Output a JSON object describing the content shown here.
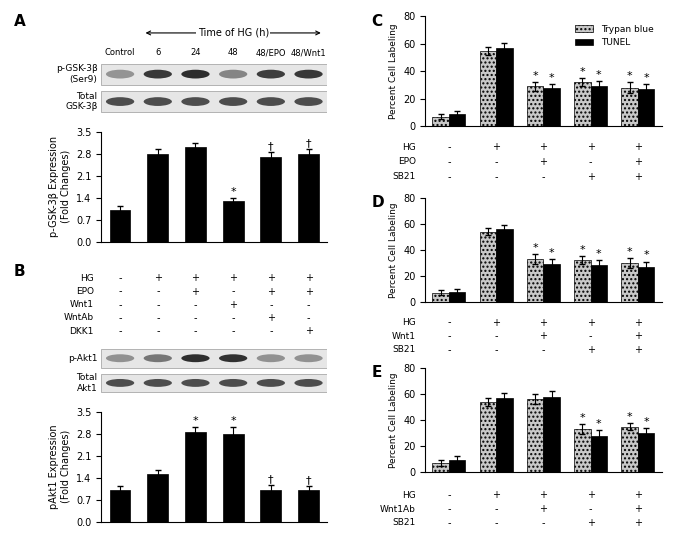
{
  "chart_data": [
    {
      "title": "A",
      "type": "bar",
      "categories": [
        "Control",
        "6",
        "24",
        "48",
        "48/EPO",
        "48/Wnt1"
      ],
      "header": "Time of HG (h)",
      "blot_rows": [
        "p-GSK-3β\n(Ser9)",
        "Total\nGSK-3β"
      ],
      "ylabel": "p-GSK-3β Expression\n(Fold Changes)",
      "values": [
        1.0,
        2.8,
        3.0,
        1.3,
        2.7,
        2.8
      ],
      "errors": [
        0.12,
        0.15,
        0.15,
        0.08,
        0.15,
        0.15
      ],
      "annotations": [
        null,
        null,
        null,
        "*",
        "†",
        "†"
      ],
      "color": "#000000",
      "ylim": [
        0,
        3.5
      ],
      "yticks": [
        {
          "value": 0,
          "label": "0.0"
        },
        0.7,
        1.4,
        2.1,
        2.8,
        3.5
      ],
      "tick_labels": "y"
    },
    {
      "title": "B",
      "type": "bar",
      "conditions": [
        {
          "name": "HG",
          "values": [
            "-",
            "+",
            "+",
            "+",
            "+",
            "+"
          ]
        },
        {
          "name": "EPO",
          "values": [
            "-",
            "-",
            "+",
            "-",
            "+",
            "+"
          ]
        },
        {
          "name": "Wnt1",
          "values": [
            "-",
            "-",
            "-",
            "+",
            "-",
            "-"
          ]
        },
        {
          "name": "WntAb",
          "values": [
            "-",
            "-",
            "-",
            "-",
            "+",
            "-"
          ]
        },
        {
          "name": "DKK1",
          "values": [
            "-",
            "-",
            "-",
            "-",
            "-",
            "+"
          ]
        }
      ],
      "blot_rows": [
        "p-Akt1",
        "Total\nAkt1"
      ],
      "ylabel": "pAkt1 Expression\n(Fold Changes)",
      "values": [
        1.0,
        1.5,
        2.85,
        2.8,
        1.0,
        1.0
      ],
      "errors": [
        0.12,
        0.15,
        0.15,
        0.2,
        0.15,
        0.12
      ],
      "annotations": [
        null,
        null,
        "*",
        "*",
        "†",
        "†"
      ],
      "color": "#000000",
      "ylim": [
        0,
        3.5
      ],
      "yticks": [
        {
          "value": 0,
          "label": "0.0"
        },
        0.7,
        1.4,
        2.1,
        2.8,
        3.5
      ],
      "tick_labels": "y"
    },
    {
      "title": "C",
      "type": "bar",
      "conditions": [
        {
          "name": "HG",
          "values": [
            "-",
            "+",
            "+",
            "+",
            "+"
          ]
        },
        {
          "name": "EPO",
          "values": [
            "-",
            "-",
            "+",
            "-",
            "+"
          ]
        },
        {
          "name": "SB21",
          "values": [
            "-",
            "-",
            "-",
            "+",
            "+"
          ]
        }
      ],
      "ylabel": "Percent Cell Labeling",
      "series": [
        {
          "name": "Trypan blue",
          "color": "#c8c8c8",
          "values": [
            7,
            55,
            29,
            32,
            28
          ],
          "errors": [
            2,
            3,
            3,
            3,
            4
          ],
          "annotations": [
            null,
            null,
            "*",
            "*",
            "*"
          ]
        },
        {
          "name": "TUNEL",
          "color": "#000000",
          "values": [
            9,
            57,
            28,
            29,
            27
          ],
          "errors": [
            2,
            4,
            3,
            4,
            4
          ],
          "annotations": [
            null,
            null,
            "*",
            "*",
            "*"
          ]
        }
      ],
      "legend": "upper right",
      "ylim": [
        0,
        80
      ],
      "yticks": [
        0,
        20,
        40,
        60,
        80
      ],
      "tick_labels": "y"
    },
    {
      "title": "D",
      "type": "bar",
      "conditions": [
        {
          "name": "HG",
          "values": [
            "-",
            "+",
            "+",
            "+",
            "+"
          ]
        },
        {
          "name": "Wnt1",
          "values": [
            "-",
            "-",
            "+",
            "-",
            "+"
          ]
        },
        {
          "name": "SB21",
          "values": [
            "-",
            "-",
            "-",
            "+",
            "+"
          ]
        }
      ],
      "ylabel": "Percent Cell Labeling",
      "series": [
        {
          "color": "#c8c8c8",
          "values": [
            7,
            54,
            33,
            32,
            30
          ],
          "errors": [
            2,
            3,
            4,
            3,
            4
          ],
          "annotations": [
            null,
            null,
            "*",
            "*",
            "*"
          ]
        },
        {
          "color": "#000000",
          "values": [
            8,
            56,
            29,
            28,
            27
          ],
          "errors": [
            2,
            3,
            4,
            4,
            4
          ],
          "annotations": [
            null,
            null,
            "*",
            "*",
            "*"
          ]
        }
      ],
      "ylim": [
        0,
        80
      ],
      "yticks": [
        0,
        20,
        40,
        60,
        80
      ],
      "tick_labels": "y"
    },
    {
      "title": "E",
      "type": "bar",
      "conditions": [
        {
          "name": "HG",
          "values": [
            "-",
            "+",
            "+",
            "+",
            "+"
          ]
        },
        {
          "name": "Wnt1Ab",
          "values": [
            "-",
            "-",
            "+",
            "-",
            "+"
          ]
        },
        {
          "name": "SB21",
          "values": [
            "-",
            "-",
            "-",
            "+",
            "+"
          ]
        }
      ],
      "ylabel": "Percent Cell Labeling",
      "series": [
        {
          "color": "#c8c8c8",
          "values": [
            7,
            54,
            56,
            33,
            35
          ],
          "errors": [
            2,
            3,
            4,
            4,
            3
          ],
          "annotations": [
            null,
            null,
            null,
            "*",
            "*"
          ]
        },
        {
          "color": "#000000",
          "values": [
            9,
            57,
            58,
            28,
            30
          ],
          "errors": [
            3,
            4,
            4,
            4,
            4
          ],
          "annotations": [
            null,
            null,
            null,
            "*",
            "*"
          ]
        }
      ],
      "ylim": [
        0,
        80
      ],
      "yticks": [
        0,
        20,
        40,
        60,
        80
      ],
      "tick_labels": "y"
    }
  ]
}
